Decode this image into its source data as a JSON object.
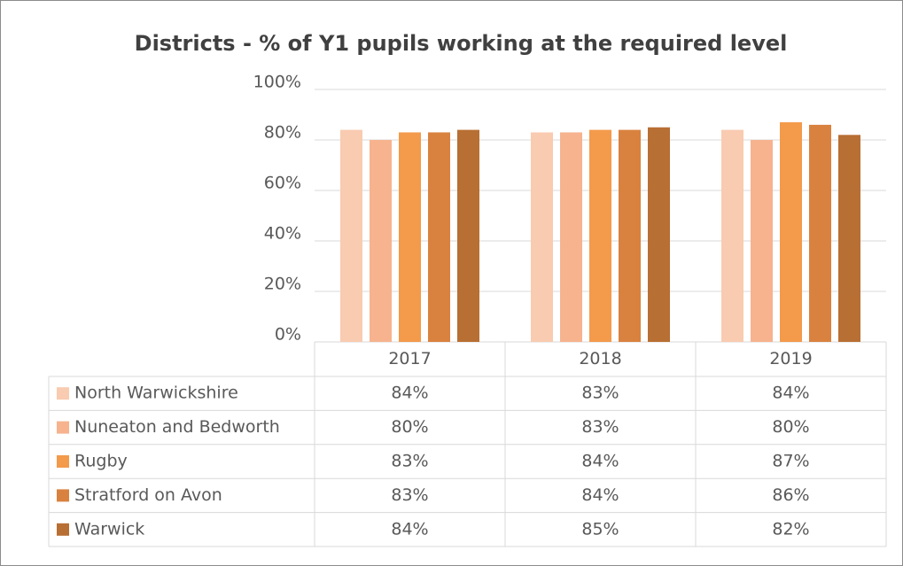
{
  "chart_data": {
    "type": "bar",
    "title": "Districts - % of Y1 pupils working at the required level",
    "categories": [
      "2017",
      "2018",
      "2019"
    ],
    "series": [
      {
        "name": "North Warwickshire",
        "color": "#f9cbb0",
        "values": [
          84,
          83,
          84
        ],
        "value_labels": [
          "84%",
          "83%",
          "84%"
        ]
      },
      {
        "name": "Nuneaton and Bedworth",
        "color": "#f6b38e",
        "values": [
          80,
          83,
          80
        ],
        "value_labels": [
          "80%",
          "83%",
          "80%"
        ]
      },
      {
        "name": "Rugby",
        "color": "#f39a4b",
        "values": [
          83,
          84,
          87
        ],
        "value_labels": [
          "83%",
          "84%",
          "87%"
        ]
      },
      {
        "name": "Stratford on Avon",
        "color": "#d9823f",
        "values": [
          83,
          84,
          86
        ],
        "value_labels": [
          "83%",
          "84%",
          "86%"
        ]
      },
      {
        "name": "Warwick",
        "color": "#b86f33",
        "values": [
          84,
          85,
          82
        ],
        "value_labels": [
          "84%",
          "85%",
          "82%"
        ]
      }
    ],
    "ylim": [
      0,
      100
    ],
    "yticks": [
      {
        "value": 0,
        "label": "0%"
      },
      {
        "value": 20,
        "label": "20%"
      },
      {
        "value": 40,
        "label": "40%"
      },
      {
        "value": 60,
        "label": "60%"
      },
      {
        "value": 80,
        "label": "80%"
      },
      {
        "value": 100,
        "label": "100%"
      }
    ],
    "grid": true
  }
}
